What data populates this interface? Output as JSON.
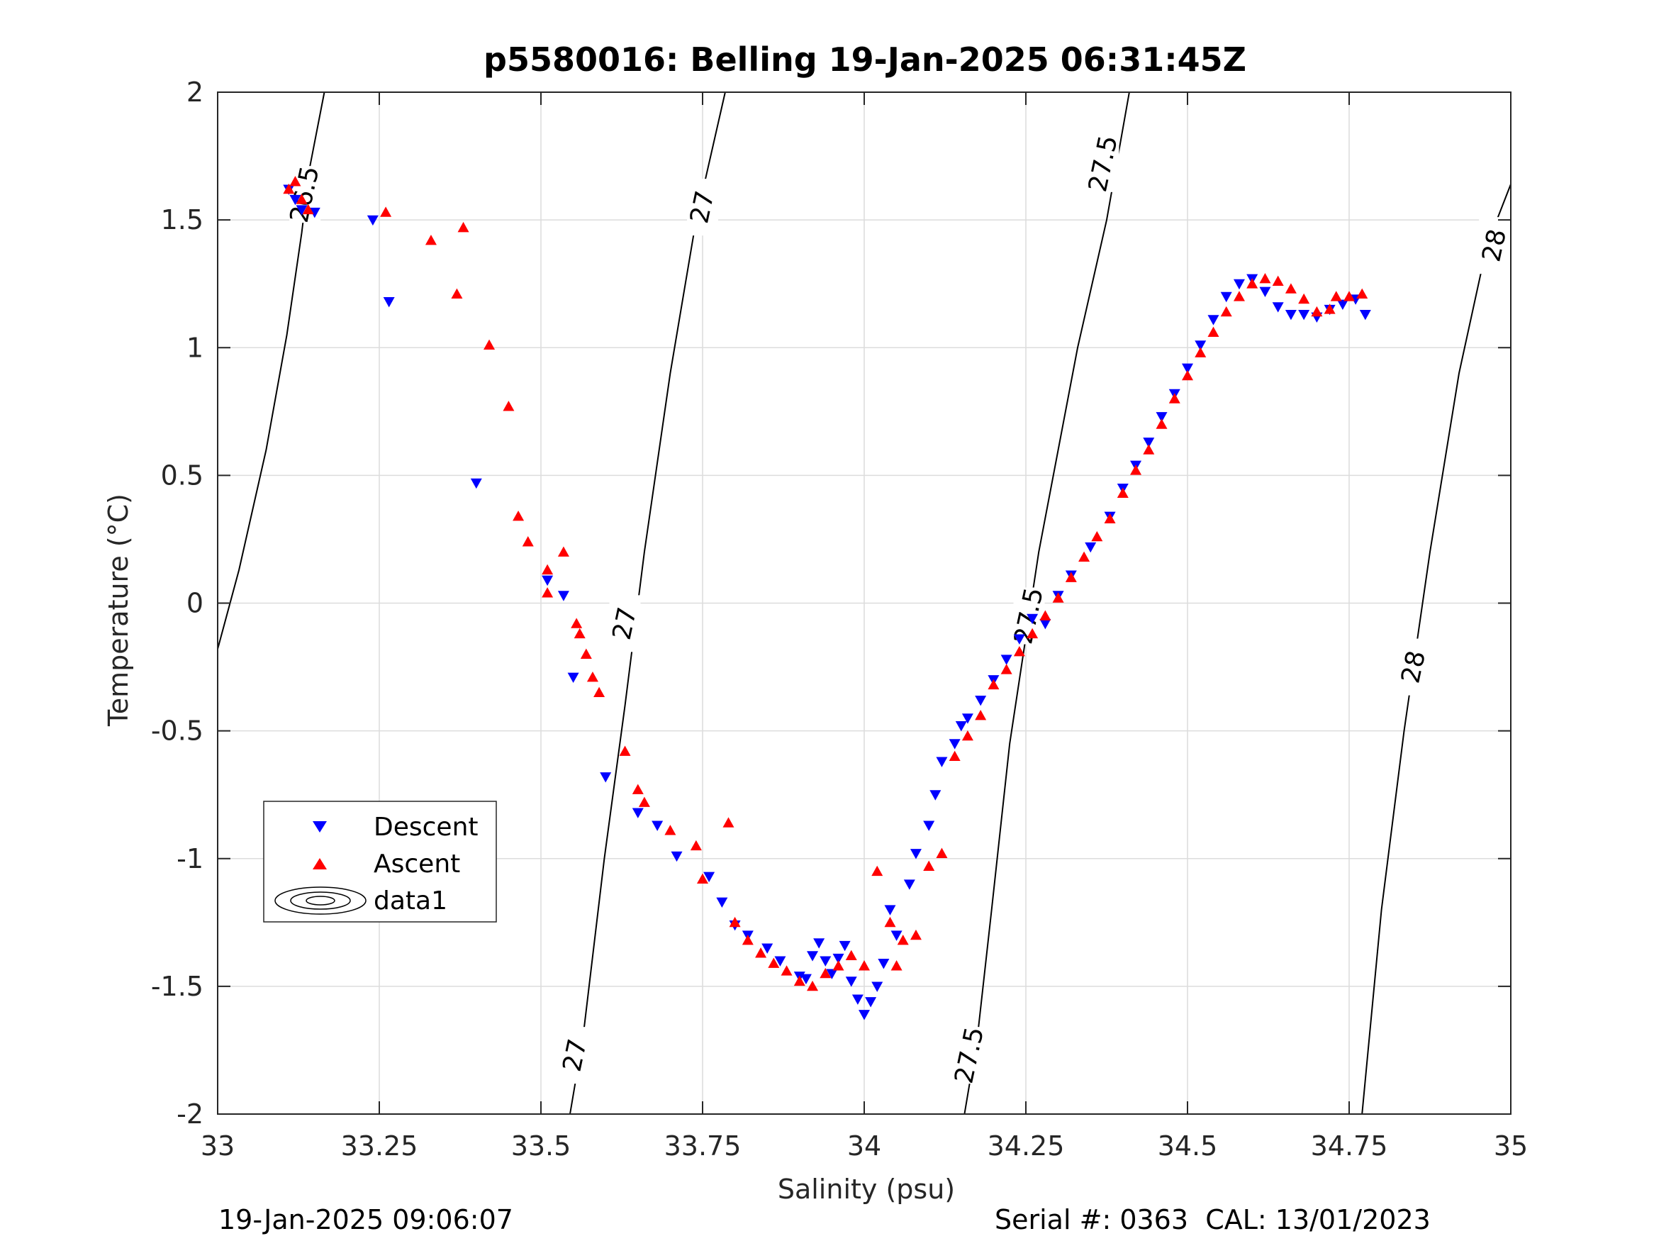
{
  "chart_data": {
    "type": "scatter",
    "title": "p5580016: Belling 19-Jan-2025 06:31:45Z",
    "xlabel": "Salinity (psu)",
    "ylabel": "Temperature (°C)",
    "xlim": [
      33,
      35
    ],
    "ylim": [
      -2,
      2
    ],
    "xticks": [
      33,
      33.25,
      33.5,
      33.75,
      34,
      34.25,
      34.5,
      34.75,
      35
    ],
    "xtick_labels": [
      "33",
      "33.25",
      "33.5",
      "33.75",
      "34",
      "34.25",
      "34.5",
      "34.75",
      "35"
    ],
    "yticks": [
      -2,
      -1.5,
      -1,
      -0.5,
      0,
      0.5,
      1,
      1.5,
      2
    ],
    "ytick_labels": [
      "-2",
      "-1.5",
      "-1",
      "-0.5",
      "0",
      "0.5",
      "1",
      "1.5",
      "2"
    ],
    "grid": true,
    "legend_position": "lower-left",
    "legend": [
      "Descent",
      "Ascent",
      "data1"
    ],
    "colors": {
      "descent": "#0000ff",
      "ascent": "#ff0000",
      "contour": "#000000",
      "grid": "#dcdcdc"
    },
    "contours": [
      {
        "level": "26.5",
        "points": [
          [
            33.0,
            -0.18
          ],
          [
            33.033,
            0.13
          ],
          [
            33.075,
            0.6
          ],
          [
            33.107,
            1.05
          ],
          [
            33.13,
            1.45
          ],
          [
            33.142,
            1.7
          ],
          [
            33.165,
            2.0
          ]
        ],
        "labels": [
          {
            "s": 33.135,
            "t": 1.6,
            "text": "26.5"
          }
        ]
      },
      {
        "level": "27",
        "points": [
          [
            33.545,
            -2.0
          ],
          [
            33.565,
            -1.7
          ],
          [
            33.598,
            -1.0
          ],
          [
            33.63,
            -0.4
          ],
          [
            33.66,
            0.2
          ],
          [
            33.7,
            0.9
          ],
          [
            33.74,
            1.5
          ],
          [
            33.785,
            2.0
          ]
        ],
        "labels": [
          {
            "s": 33.553,
            "t": -1.77,
            "text": "27"
          },
          {
            "s": 33.63,
            "t": -0.08,
            "text": "27"
          },
          {
            "s": 33.75,
            "t": 1.55,
            "text": "27"
          }
        ]
      },
      {
        "level": "27.5",
        "points": [
          [
            34.155,
            -2.0
          ],
          [
            34.175,
            -1.7
          ],
          [
            34.197,
            -1.2
          ],
          [
            34.225,
            -0.55
          ],
          [
            34.27,
            0.2
          ],
          [
            34.33,
            1.0
          ],
          [
            34.375,
            1.5
          ],
          [
            34.41,
            2.0
          ]
        ],
        "labels": [
          {
            "s": 34.163,
            "t": -1.77,
            "text": "27.5"
          },
          {
            "s": 34.255,
            "t": -0.05,
            "text": "27.5"
          },
          {
            "s": 34.37,
            "t": 1.72,
            "text": "27.5"
          }
        ]
      },
      {
        "level": "28",
        "points": [
          [
            34.77,
            -2.0
          ],
          [
            34.8,
            -1.2
          ],
          [
            34.835,
            -0.5
          ],
          [
            34.875,
            0.2
          ],
          [
            34.92,
            0.9
          ],
          [
            34.963,
            1.4
          ],
          [
            35.0,
            1.64
          ]
        ],
        "labels": [
          {
            "s": 34.85,
            "t": -0.25,
            "text": "28"
          },
          {
            "s": 34.975,
            "t": 1.4,
            "text": "28"
          }
        ]
      }
    ],
    "series": [
      {
        "name": "Descent",
        "marker": "triangle-down",
        "color": "#0000ff",
        "x": [
          33.11,
          33.12,
          33.13,
          33.15,
          33.24,
          33.265,
          33.4,
          33.51,
          33.535,
          33.55,
          33.6,
          33.65,
          33.68,
          33.71,
          33.76,
          33.78,
          33.8,
          33.82,
          33.85,
          33.87,
          33.9,
          33.91,
          33.92,
          33.93,
          33.94,
          33.95,
          33.96,
          33.97,
          33.98,
          33.99,
          34.0,
          34.01,
          34.02,
          34.03,
          34.04,
          34.05,
          34.07,
          34.08,
          34.1,
          34.11,
          34.12,
          34.14,
          34.15,
          34.16,
          34.18,
          34.2,
          34.22,
          34.24,
          34.26,
          34.28,
          34.3,
          34.32,
          34.35,
          34.38,
          34.4,
          34.42,
          34.44,
          34.46,
          34.48,
          34.5,
          34.52,
          34.54,
          34.56,
          34.58,
          34.6,
          34.62,
          34.64,
          34.66,
          34.68,
          34.7,
          34.72,
          34.74,
          34.76,
          34.775
        ],
        "y": [
          1.62,
          1.58,
          1.54,
          1.53,
          1.5,
          1.18,
          0.47,
          0.09,
          0.03,
          -0.29,
          -0.68,
          -0.82,
          -0.87,
          -0.99,
          -1.07,
          -1.17,
          -1.26,
          -1.3,
          -1.35,
          -1.4,
          -1.46,
          -1.47,
          -1.38,
          -1.33,
          -1.4,
          -1.45,
          -1.39,
          -1.34,
          -1.48,
          -1.55,
          -1.61,
          -1.56,
          -1.5,
          -1.41,
          -1.2,
          -1.3,
          -1.1,
          -0.98,
          -0.87,
          -0.75,
          -0.62,
          -0.55,
          -0.48,
          -0.45,
          -0.38,
          -0.3,
          -0.22,
          -0.14,
          -0.06,
          -0.08,
          0.03,
          0.11,
          0.22,
          0.34,
          0.45,
          0.54,
          0.63,
          0.73,
          0.82,
          0.92,
          1.01,
          1.11,
          1.2,
          1.25,
          1.27,
          1.22,
          1.16,
          1.13,
          1.13,
          1.12,
          1.15,
          1.17,
          1.19,
          1.13
        ]
      },
      {
        "name": "Ascent",
        "marker": "triangle-up",
        "color": "#ff0000",
        "x": [
          33.11,
          33.12,
          33.13,
          33.14,
          33.26,
          33.33,
          33.37,
          33.38,
          33.42,
          33.45,
          33.465,
          33.48,
          33.51,
          33.51,
          33.535,
          33.555,
          33.56,
          33.57,
          33.58,
          33.59,
          33.63,
          33.65,
          33.66,
          33.7,
          33.74,
          33.75,
          33.79,
          33.8,
          33.82,
          33.84,
          33.86,
          33.88,
          33.9,
          33.92,
          33.94,
          33.96,
          33.98,
          34.0,
          34.02,
          34.04,
          34.05,
          34.06,
          34.08,
          34.1,
          34.12,
          34.14,
          34.16,
          34.18,
          34.2,
          34.22,
          34.24,
          34.26,
          34.28,
          34.3,
          34.32,
          34.34,
          34.36,
          34.38,
          34.4,
          34.42,
          34.44,
          34.46,
          34.48,
          34.5,
          34.52,
          34.54,
          34.56,
          34.58,
          34.6,
          34.62,
          34.64,
          34.66,
          34.68,
          34.7,
          34.72,
          34.73,
          34.75,
          34.77
        ],
        "y": [
          1.62,
          1.65,
          1.58,
          1.54,
          1.53,
          1.42,
          1.21,
          1.47,
          1.01,
          0.77,
          0.34,
          0.24,
          0.13,
          0.04,
          0.2,
          -0.08,
          -0.12,
          -0.2,
          -0.29,
          -0.35,
          -0.58,
          -0.73,
          -0.78,
          -0.89,
          -0.95,
          -1.08,
          -0.86,
          -1.25,
          -1.32,
          -1.37,
          -1.41,
          -1.44,
          -1.48,
          -1.5,
          -1.45,
          -1.42,
          -1.38,
          -1.42,
          -1.05,
          -1.25,
          -1.42,
          -1.32,
          -1.3,
          -1.03,
          -0.98,
          -0.6,
          -0.52,
          -0.44,
          -0.32,
          -0.26,
          -0.19,
          -0.12,
          -0.05,
          0.02,
          0.1,
          0.18,
          0.26,
          0.33,
          0.43,
          0.52,
          0.6,
          0.7,
          0.8,
          0.89,
          0.98,
          1.06,
          1.14,
          1.2,
          1.25,
          1.27,
          1.26,
          1.23,
          1.19,
          1.14,
          1.15,
          1.2,
          1.2,
          1.21
        ]
      }
    ]
  },
  "footer": {
    "left": "19-Jan-2025 09:06:07",
    "right": "Serial #: 0363  CAL: 13/01/2023"
  }
}
